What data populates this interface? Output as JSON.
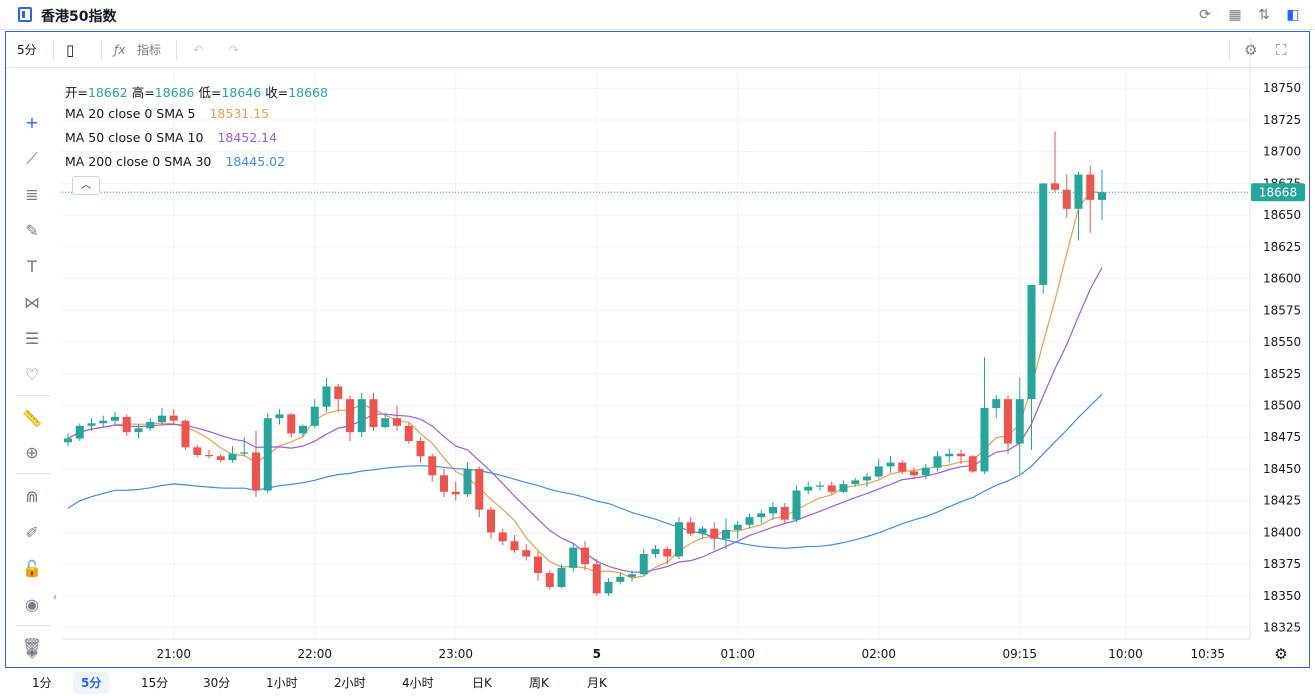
{
  "window": {
    "title": "香港50指数"
  },
  "toolbar": {
    "interval": "5分",
    "indicators_label": "指标"
  },
  "legend": {
    "ohlc": [
      {
        "key": "开=",
        "value": "18662"
      },
      {
        "key": "高=",
        "value": "18686"
      },
      {
        "key": "低=",
        "value": "18646"
      },
      {
        "key": "收=",
        "value": "18668"
      }
    ],
    "ma": [
      {
        "label": "MA 20 close 0 SMA 5",
        "value": "18531.15",
        "color": "#e8a04c"
      },
      {
        "label": "MA 50 close 0 SMA 10",
        "value": "18452.14",
        "color": "#9c5fd6"
      },
      {
        "label": "MA 200 close 0 SMA 30",
        "value": "18445.02",
        "color": "#3f8ee0"
      }
    ]
  },
  "timeframes": [
    {
      "label": "1分",
      "active": false
    },
    {
      "label": "5分",
      "active": true
    },
    {
      "label": "15分",
      "active": false
    },
    {
      "label": "30分",
      "active": false
    },
    {
      "label": "1小时",
      "active": false
    },
    {
      "label": "2小时",
      "active": false
    },
    {
      "label": "4小时",
      "active": false
    },
    {
      "label": "日K",
      "active": false
    },
    {
      "label": "周K",
      "active": false
    },
    {
      "label": "月K",
      "active": false
    }
  ],
  "chart_data": {
    "type": "candlestick",
    "colors": {
      "up": "#26a69a",
      "down": "#ef5350"
    },
    "last_price": {
      "label": "18668",
      "value": 18668,
      "color": "#26a69a"
    },
    "ylim": [
      18316,
      18762
    ],
    "y_ticks": [
      18325,
      18350,
      18375,
      18400,
      18425,
      18450,
      18475,
      18500,
      18525,
      18550,
      18575,
      18600,
      18625,
      18650,
      18675,
      18700,
      18725,
      18750
    ],
    "x_ticks": [
      {
        "label": "21:00",
        "index": 9,
        "bold": false
      },
      {
        "label": "22:00",
        "index": 21,
        "bold": false
      },
      {
        "label": "23:00",
        "index": 33,
        "bold": false
      },
      {
        "label": "5",
        "index": 45,
        "bold": true
      },
      {
        "label": "01:00",
        "index": 57,
        "bold": false
      },
      {
        "label": "02:00",
        "index": 69,
        "bold": false
      },
      {
        "label": "09:15",
        "index": 81,
        "bold": false
      },
      {
        "label": "10:00",
        "index": 90,
        "bold": false
      },
      {
        "label": "10:35",
        "index": 97,
        "bold": false
      }
    ],
    "candles": [
      [
        18471,
        18478,
        18468,
        18474
      ],
      [
        18474,
        18486,
        18472,
        18484
      ],
      [
        18484,
        18490,
        18480,
        18486
      ],
      [
        18486,
        18492,
        18483,
        18488
      ],
      [
        18488,
        18495,
        18485,
        18491
      ],
      [
        18491,
        18493,
        18476,
        18479
      ],
      [
        18479,
        18485,
        18474,
        18482
      ],
      [
        18482,
        18490,
        18480,
        18487
      ],
      [
        18487,
        18498,
        18484,
        18492
      ],
      [
        18492,
        18497,
        18485,
        18488
      ],
      [
        18488,
        18489,
        18465,
        18467
      ],
      [
        18467,
        18469,
        18459,
        18461
      ],
      [
        18461,
        18465,
        18458,
        18460
      ],
      [
        18460,
        18462,
        18455,
        18457
      ],
      [
        18457,
        18468,
        18455,
        18462
      ],
      [
        18462,
        18475,
        18460,
        18463
      ],
      [
        18463,
        18480,
        18428,
        18433
      ],
      [
        18433,
        18494,
        18431,
        18490
      ],
      [
        18490,
        18497,
        18485,
        18493
      ],
      [
        18493,
        18494,
        18475,
        18478
      ],
      [
        18478,
        18485,
        18475,
        18484
      ],
      [
        18484,
        18505,
        18482,
        18499
      ],
      [
        18499,
        18522,
        18495,
        18515
      ],
      [
        18515,
        18517,
        18495,
        18505
      ],
      [
        18505,
        18508,
        18472,
        18479
      ],
      [
        18479,
        18510,
        18475,
        18505
      ],
      [
        18505,
        18510,
        18480,
        18483
      ],
      [
        18483,
        18494,
        18482,
        18490
      ],
      [
        18490,
        18500,
        18480,
        18484
      ],
      [
        18484,
        18486,
        18470,
        18472
      ],
      [
        18472,
        18475,
        18455,
        18460
      ],
      [
        18460,
        18462,
        18440,
        18445
      ],
      [
        18445,
        18450,
        18428,
        18432
      ],
      [
        18432,
        18440,
        18425,
        18430
      ],
      [
        18430,
        18455,
        18428,
        18450
      ],
      [
        18450,
        18452,
        18412,
        18418
      ],
      [
        18418,
        18420,
        18395,
        18400
      ],
      [
        18400,
        18403,
        18390,
        18393
      ],
      [
        18393,
        18398,
        18384,
        18386
      ],
      [
        18386,
        18391,
        18378,
        18381
      ],
      [
        18381,
        18385,
        18362,
        18368
      ],
      [
        18368,
        18370,
        18355,
        18357
      ],
      [
        18357,
        18375,
        18356,
        18372
      ],
      [
        18372,
        18392,
        18369,
        18388
      ],
      [
        18388,
        18393,
        18370,
        18375
      ],
      [
        18375,
        18379,
        18350,
        18352
      ],
      [
        18352,
        18364,
        18350,
        18361
      ],
      [
        18361,
        18368,
        18359,
        18365
      ],
      [
        18365,
        18370,
        18361,
        18367
      ],
      [
        18367,
        18387,
        18366,
        18383
      ],
      [
        18383,
        18390,
        18380,
        18387
      ],
      [
        18387,
        18389,
        18375,
        18381
      ],
      [
        18381,
        18412,
        18379,
        18408
      ],
      [
        18408,
        18412,
        18397,
        18399
      ],
      [
        18399,
        18405,
        18396,
        18403
      ],
      [
        18403,
        18408,
        18386,
        18395
      ],
      [
        18395,
        18411,
        18387,
        18402
      ],
      [
        18402,
        18409,
        18395,
        18406
      ],
      [
        18406,
        18415,
        18403,
        18412
      ],
      [
        18412,
        18418,
        18407,
        18415
      ],
      [
        18415,
        18424,
        18410,
        18420
      ],
      [
        18420,
        18423,
        18407,
        18410
      ],
      [
        18410,
        18437,
        18408,
        18433
      ],
      [
        18433,
        18440,
        18430,
        18436
      ],
      [
        18436,
        18440,
        18433,
        18437
      ],
      [
        18437,
        18440,
        18430,
        18432
      ],
      [
        18432,
        18441,
        18431,
        18438
      ],
      [
        18438,
        18443,
        18436,
        18441
      ],
      [
        18441,
        18447,
        18436,
        18444
      ],
      [
        18444,
        18458,
        18442,
        18452
      ],
      [
        18452,
        18460,
        18447,
        18455
      ],
      [
        18455,
        18457,
        18446,
        18448
      ],
      [
        18448,
        18451,
        18442,
        18445
      ],
      [
        18445,
        18454,
        18442,
        18451
      ],
      [
        18451,
        18464,
        18448,
        18460
      ],
      [
        18460,
        18466,
        18455,
        18462
      ],
      [
        18462,
        18465,
        18454,
        18460
      ],
      [
        18460,
        18461,
        18447,
        18448
      ],
      [
        18448,
        18538,
        18446,
        18498
      ],
      [
        18498,
        18508,
        18490,
        18505
      ],
      [
        18505,
        18508,
        18462,
        18470
      ],
      [
        18470,
        18522,
        18446,
        18505
      ],
      [
        18505,
        18595,
        18465,
        18595
      ],
      [
        18595,
        18675,
        18588,
        18675
      ],
      [
        18675,
        18716,
        18668,
        18670
      ],
      [
        18670,
        18682,
        18648,
        18655
      ],
      [
        18655,
        18684,
        18630,
        18682
      ],
      [
        18682,
        18689,
        18636,
        18662
      ],
      [
        18662,
        18686,
        18646,
        18668
      ]
    ],
    "ma_colors": [
      "#e8a04c",
      "#9c5fd6",
      "#3f8ee0"
    ]
  }
}
